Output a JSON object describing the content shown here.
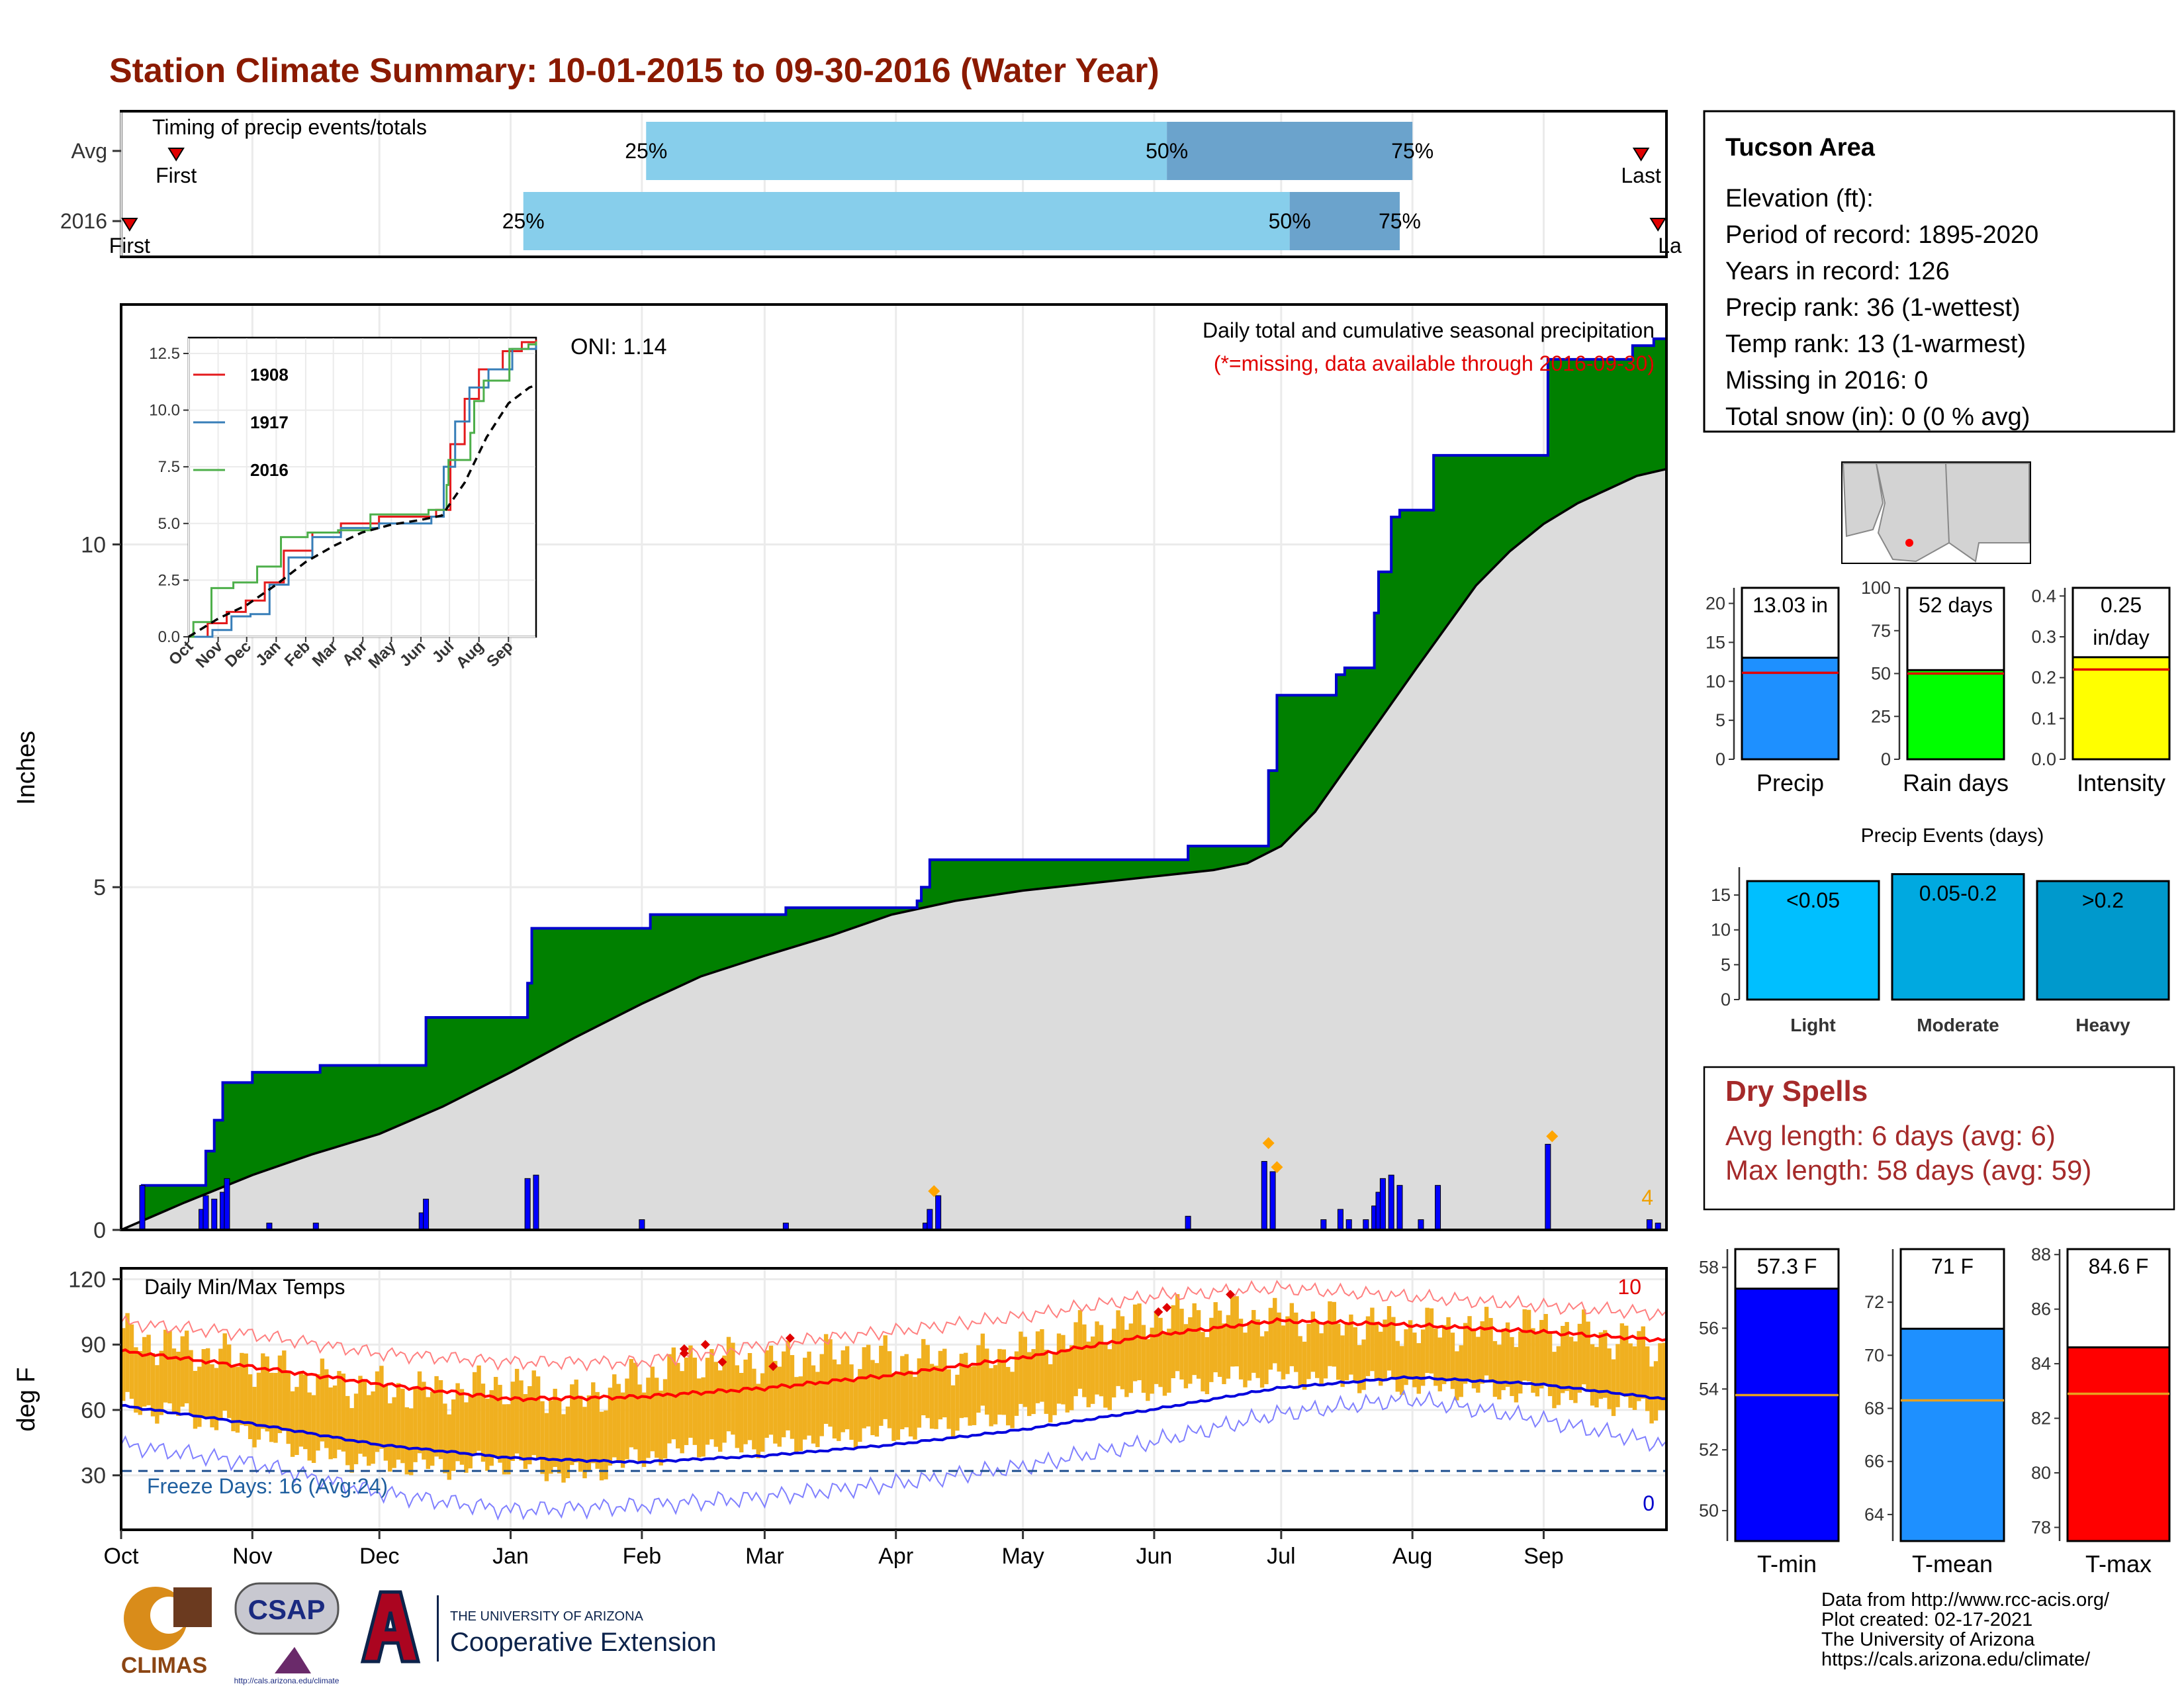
{
  "title": "Station Climate Summary: 10-01-2015 to 09-30-2016 (Water Year)",
  "months": [
    "Oct",
    "Nov",
    "Dec",
    "Jan",
    "Feb",
    "Mar",
    "Apr",
    "May",
    "Jun",
    "Jul",
    "Aug",
    "Sep"
  ],
  "timing": {
    "title": "Timing of precip events/totals",
    "rows": [
      {
        "label": "Avg",
        "first_day": 13,
        "last_day": 359,
        "p25": 124,
        "p50": 247,
        "p75": 305,
        "first_label": "First",
        "last_label": "Last",
        "p25_label": "25%",
        "p50_label": "50%",
        "p75_label": "75%"
      },
      {
        "label": "2016",
        "first_day": 2,
        "last_day": 363,
        "p25": 95,
        "p50": 276,
        "p75": 302,
        "first_label": "First",
        "last_label": "Last",
        "p25_label": "25%",
        "p50_label": "50%",
        "p75_label": "75%"
      }
    ]
  },
  "precip": {
    "ylabel": "Inches",
    "yticks": [
      0,
      5,
      10
    ],
    "ylim": [
      0,
      13.5
    ],
    "oni": "ONI: 1.14",
    "note_title": "Daily total and cumulative seasonal precipitation",
    "note_missing": "(*=missing, data available through 2016-09-30)",
    "count_label": "4",
    "cumulative_2016": [
      [
        0,
        0
      ],
      [
        5,
        0.65
      ],
      [
        17,
        0.65
      ],
      [
        20,
        1.15
      ],
      [
        22,
        1.6
      ],
      [
        24,
        2.15
      ],
      [
        31,
        2.3
      ],
      [
        45,
        2.3
      ],
      [
        47,
        2.4
      ],
      [
        70,
        2.4
      ],
      [
        72,
        3.1
      ],
      [
        74,
        3.1
      ],
      [
        94,
        3.1
      ],
      [
        96,
        3.6
      ],
      [
        97,
        4.4
      ],
      [
        123,
        4.4
      ],
      [
        125,
        4.6
      ],
      [
        155,
        4.6
      ],
      [
        157,
        4.7
      ],
      [
        186,
        4.7
      ],
      [
        188,
        4.8
      ],
      [
        189,
        5.0
      ],
      [
        191,
        5.4
      ],
      [
        250,
        5.4
      ],
      [
        252,
        5.6
      ],
      [
        269,
        5.6
      ],
      [
        271,
        6.7
      ],
      [
        273,
        7.8
      ],
      [
        285,
        7.8
      ],
      [
        287,
        8.1
      ],
      [
        289,
        8.2
      ],
      [
        294,
        8.2
      ],
      [
        296,
        9.0
      ],
      [
        297,
        9.6
      ],
      [
        300,
        10.4
      ],
      [
        302,
        10.5
      ],
      [
        307,
        10.5
      ],
      [
        310,
        11.3
      ],
      [
        323,
        11.3
      ],
      [
        335,
        11.3
      ],
      [
        337,
        12.7
      ],
      [
        355,
        12.7
      ],
      [
        357,
        12.9
      ],
      [
        362,
        13.0
      ],
      [
        365,
        13.03
      ]
    ],
    "cumulative_avg": [
      [
        0,
        0
      ],
      [
        15,
        0.4
      ],
      [
        31,
        0.8
      ],
      [
        45,
        1.1
      ],
      [
        61,
        1.4
      ],
      [
        76,
        1.8
      ],
      [
        92,
        2.3
      ],
      [
        107,
        2.8
      ],
      [
        123,
        3.3
      ],
      [
        137,
        3.7
      ],
      [
        152,
        4.0
      ],
      [
        168,
        4.3
      ],
      [
        182,
        4.6
      ],
      [
        197,
        4.8
      ],
      [
        213,
        4.95
      ],
      [
        228,
        5.05
      ],
      [
        243,
        5.15
      ],
      [
        258,
        5.25
      ],
      [
        266,
        5.35
      ],
      [
        274,
        5.6
      ],
      [
        282,
        6.1
      ],
      [
        290,
        6.8
      ],
      [
        298,
        7.5
      ],
      [
        306,
        8.2
      ],
      [
        313,
        8.8
      ],
      [
        320,
        9.4
      ],
      [
        328,
        9.9
      ],
      [
        336,
        10.3
      ],
      [
        344,
        10.6
      ],
      [
        351,
        10.8
      ],
      [
        358,
        11.0
      ],
      [
        365,
        11.1
      ]
    ],
    "daily_bars": [
      [
        5,
        0.65
      ],
      [
        19,
        0.3
      ],
      [
        20,
        0.5
      ],
      [
        22,
        0.45
      ],
      [
        24,
        0.55
      ],
      [
        25,
        0.75
      ],
      [
        35,
        0.1
      ],
      [
        46,
        0.1
      ],
      [
        71,
        0.25
      ],
      [
        72,
        0.45
      ],
      [
        96,
        0.75
      ],
      [
        98,
        0.8
      ],
      [
        123,
        0.15
      ],
      [
        157,
        0.1
      ],
      [
        190,
        0.1
      ],
      [
        191,
        0.3
      ],
      [
        193,
        0.5
      ],
      [
        252,
        0.2
      ],
      [
        270,
        1.0
      ],
      [
        272,
        0.85
      ],
      [
        284,
        0.15
      ],
      [
        288,
        0.3
      ],
      [
        290,
        0.15
      ],
      [
        294,
        0.15
      ],
      [
        296,
        0.35
      ],
      [
        297,
        0.55
      ],
      [
        298,
        0.75
      ],
      [
        300,
        0.8
      ],
      [
        302,
        0.65
      ],
      [
        307,
        0.15
      ],
      [
        311,
        0.65
      ],
      [
        337,
        1.25
      ],
      [
        361,
        0.15
      ],
      [
        363,
        0.1
      ]
    ],
    "markers": [
      [
        192,
        0.45
      ],
      [
        271,
        1.15
      ],
      [
        273,
        0.8
      ],
      [
        338,
        1.25
      ]
    ]
  },
  "inset": {
    "yticks": [
      0.0,
      2.5,
      5.0,
      7.5,
      10.0,
      12.5
    ],
    "ylim": [
      0,
      13.2
    ],
    "months": [
      "Oct",
      "Nov",
      "Dec",
      "Jan",
      "Feb",
      "Mar",
      "Apr",
      "May",
      "Jun",
      "Jul",
      "Aug",
      "Sep"
    ],
    "series": [
      {
        "name": "1908",
        "color": "#e41a1c",
        "points": [
          [
            0,
            0
          ],
          [
            20,
            0.6
          ],
          [
            40,
            1.1
          ],
          [
            60,
            1.6
          ],
          [
            80,
            2.4
          ],
          [
            100,
            3.8
          ],
          [
            130,
            4.6
          ],
          [
            160,
            5.0
          ],
          [
            200,
            5.3
          ],
          [
            260,
            5.6
          ],
          [
            275,
            8.5
          ],
          [
            290,
            10.5
          ],
          [
            305,
            11.8
          ],
          [
            330,
            12.6
          ],
          [
            350,
            13.0
          ],
          [
            365,
            13.1
          ]
        ]
      },
      {
        "name": "1917",
        "color": "#377eb8",
        "points": [
          [
            0,
            0
          ],
          [
            25,
            0.3
          ],
          [
            45,
            0.9
          ],
          [
            65,
            1.0
          ],
          [
            85,
            2.3
          ],
          [
            105,
            3.5
          ],
          [
            130,
            4.4
          ],
          [
            160,
            4.8
          ],
          [
            200,
            5.0
          ],
          [
            255,
            5.3
          ],
          [
            268,
            7.5
          ],
          [
            280,
            9.5
          ],
          [
            295,
            11.0
          ],
          [
            315,
            11.8
          ],
          [
            340,
            12.7
          ],
          [
            365,
            12.9
          ]
        ]
      },
      {
        "name": "2016",
        "color": "#4daf4a",
        "points": [
          [
            0,
            0
          ],
          [
            5,
            0.65
          ],
          [
            24,
            2.15
          ],
          [
            47,
            2.4
          ],
          [
            72,
            3.1
          ],
          [
            97,
            4.4
          ],
          [
            125,
            4.6
          ],
          [
            157,
            4.7
          ],
          [
            191,
            5.4
          ],
          [
            250,
            5.4
          ],
          [
            252,
            5.6
          ],
          [
            271,
            6.7
          ],
          [
            273,
            7.8
          ],
          [
            296,
            9.0
          ],
          [
            300,
            10.4
          ],
          [
            310,
            11.3
          ],
          [
            337,
            12.7
          ],
          [
            357,
            12.9
          ],
          [
            365,
            13.03
          ]
        ]
      },
      {
        "name": "",
        "color": "#000000",
        "dashed": true,
        "points": [
          [
            0,
            0
          ],
          [
            31,
            0.8
          ],
          [
            61,
            1.4
          ],
          [
            92,
            2.3
          ],
          [
            123,
            3.3
          ],
          [
            152,
            4.0
          ],
          [
            182,
            4.6
          ],
          [
            213,
            4.95
          ],
          [
            243,
            5.15
          ],
          [
            266,
            5.35
          ],
          [
            290,
            6.8
          ],
          [
            313,
            8.8
          ],
          [
            336,
            10.3
          ],
          [
            358,
            11.0
          ],
          [
            365,
            11.1
          ]
        ]
      }
    ]
  },
  "temps": {
    "label": "Daily Min/Max Temps",
    "ylabel": "deg F",
    "yticks": [
      30,
      60,
      90,
      120
    ],
    "ylim": [
      5,
      125
    ],
    "freeze_line": 32,
    "freeze_label": "Freeze Days: 16 (Avg:24)",
    "count_max_label": "10",
    "count_min_label": "0",
    "avg_max": [
      [
        0,
        87
      ],
      [
        30,
        80
      ],
      [
        61,
        72
      ],
      [
        92,
        65
      ],
      [
        122,
        66
      ],
      [
        152,
        70
      ],
      [
        182,
        76
      ],
      [
        213,
        84
      ],
      [
        243,
        94
      ],
      [
        273,
        101
      ],
      [
        304,
        99
      ],
      [
        334,
        96
      ],
      [
        365,
        92
      ]
    ],
    "avg_min": [
      [
        0,
        62
      ],
      [
        30,
        54
      ],
      [
        61,
        44
      ],
      [
        92,
        38
      ],
      [
        122,
        36
      ],
      [
        152,
        39
      ],
      [
        182,
        44
      ],
      [
        213,
        51
      ],
      [
        243,
        60
      ],
      [
        273,
        70
      ],
      [
        304,
        75
      ],
      [
        334,
        72
      ],
      [
        365,
        65
      ]
    ],
    "record_max": [
      [
        0,
        100
      ],
      [
        30,
        95
      ],
      [
        61,
        86
      ],
      [
        92,
        82
      ],
      [
        122,
        82
      ],
      [
        152,
        90
      ],
      [
        182,
        96
      ],
      [
        213,
        103
      ],
      [
        243,
        112
      ],
      [
        273,
        116
      ],
      [
        304,
        112
      ],
      [
        334,
        108
      ],
      [
        365,
        104
      ]
    ],
    "record_min": [
      [
        0,
        44
      ],
      [
        30,
        36
      ],
      [
        61,
        22
      ],
      [
        92,
        14
      ],
      [
        122,
        16
      ],
      [
        152,
        20
      ],
      [
        182,
        26
      ],
      [
        213,
        34
      ],
      [
        243,
        45
      ],
      [
        273,
        58
      ],
      [
        304,
        65
      ],
      [
        334,
        56
      ],
      [
        365,
        44
      ]
    ],
    "daily_max": [
      [
        0,
        94
      ],
      [
        15,
        88
      ],
      [
        30,
        82
      ],
      [
        45,
        74
      ],
      [
        61,
        70
      ],
      [
        76,
        68
      ],
      [
        92,
        72
      ],
      [
        107,
        64
      ],
      [
        122,
        75
      ],
      [
        137,
        84
      ],
      [
        152,
        82
      ],
      [
        168,
        85
      ],
      [
        182,
        84
      ],
      [
        197,
        82
      ],
      [
        213,
        88
      ],
      [
        228,
        96
      ],
      [
        243,
        102
      ],
      [
        258,
        104
      ],
      [
        273,
        102
      ],
      [
        289,
        100
      ],
      [
        304,
        98
      ],
      [
        320,
        97
      ],
      [
        334,
        98
      ],
      [
        350,
        94
      ],
      [
        365,
        88
      ]
    ],
    "daily_min": [
      [
        0,
        64
      ],
      [
        15,
        60
      ],
      [
        30,
        52
      ],
      [
        45,
        42
      ],
      [
        61,
        38
      ],
      [
        76,
        36
      ],
      [
        92,
        38
      ],
      [
        107,
        32
      ],
      [
        122,
        40
      ],
      [
        137,
        46
      ],
      [
        152,
        46
      ],
      [
        168,
        50
      ],
      [
        182,
        52
      ],
      [
        197,
        56
      ],
      [
        213,
        60
      ],
      [
        228,
        66
      ],
      [
        243,
        72
      ],
      [
        258,
        76
      ],
      [
        273,
        78
      ],
      [
        289,
        76
      ],
      [
        304,
        74
      ],
      [
        320,
        72
      ],
      [
        334,
        70
      ],
      [
        350,
        66
      ],
      [
        365,
        60
      ]
    ],
    "record_markers": [
      [
        133,
        86
      ],
      [
        133,
        88
      ],
      [
        138,
        90
      ],
      [
        142,
        82
      ],
      [
        158,
        93
      ],
      [
        154,
        80
      ],
      [
        245,
        105
      ],
      [
        247,
        107
      ],
      [
        262,
        113
      ]
    ]
  },
  "station": {
    "name": "Tucson Area",
    "lines": [
      "Elevation (ft):",
      "Period of record: 1895-2020",
      "Years in record: 126",
      "Precip rank: 36 (1-wettest)",
      "Temp rank: 13 (1-warmest)",
      "Missing in 2016: 0",
      "Total snow (in): 0 (0 % avg)"
    ]
  },
  "summary_bars": [
    {
      "name": "Precip",
      "value": 13.03,
      "avg": 11.1,
      "ylim": [
        0,
        22
      ],
      "yticks": [
        0,
        5,
        10,
        15,
        20
      ],
      "color": "#1e90ff",
      "value_label": "13.03 in"
    },
    {
      "name": "Rain days",
      "value": 52,
      "avg": 50,
      "ylim": [
        0,
        100
      ],
      "yticks": [
        0,
        25,
        50,
        75,
        100
      ],
      "color": "#00ff00",
      "value_label": "52 days"
    },
    {
      "name": "Intensity",
      "value": 0.25,
      "avg": 0.22,
      "ylim": [
        0,
        0.42
      ],
      "yticks": [
        0.0,
        0.1,
        0.2,
        0.3,
        0.4
      ],
      "color": "#ffff00",
      "value_label": "0.25",
      "value_label2": "in/day"
    }
  ],
  "events": {
    "title": "Precip Events (days)",
    "yticks": [
      0,
      5,
      10,
      15
    ],
    "ylim": [
      0,
      19
    ],
    "bars": [
      {
        "name": "Light",
        "value": 17,
        "range": "<0.05",
        "color": "#00bfff"
      },
      {
        "name": "Moderate",
        "value": 18,
        "range": "0.05-0.2",
        "color": "#00a9e0"
      },
      {
        "name": "Heavy",
        "value": 17,
        "range": ">0.2",
        "color": "#0099cc"
      }
    ]
  },
  "dry_spells": {
    "title": "Dry Spells",
    "avg_line": "Avg length: 6 days (avg: 6)",
    "max_line": "Max length: 58 days (avg: 59)"
  },
  "temp_bars": [
    {
      "name": "T-min",
      "value": 57.3,
      "avg": 53.8,
      "ylim": [
        49,
        58.6
      ],
      "yticks": [
        50,
        52,
        54,
        56,
        58
      ],
      "color": "#0000ff",
      "value_label": "57.3 F"
    },
    {
      "name": "T-mean",
      "value": 71,
      "avg": 68.3,
      "ylim": [
        63,
        74
      ],
      "yticks": [
        64,
        66,
        68,
        70,
        72
      ],
      "color": "#1e90ff",
      "value_label": "71 F"
    },
    {
      "name": "T-max",
      "value": 84.6,
      "avg": 82.9,
      "ylim": [
        77.5,
        88.2
      ],
      "yticks": [
        78,
        80,
        82,
        84,
        86,
        88
      ],
      "color": "#ff0000",
      "value_label": "84.6 F"
    }
  ],
  "footer": {
    "lines": [
      "Data from http://www.rcc-acis.org/",
      "Plot created: 02-17-2021",
      "The University of Arizona",
      "https://cals.arizona.edu/climate/"
    ]
  },
  "logos": {
    "climas": "CLIMAS",
    "csap": "CSAP",
    "csap_url": "http://cals.arizona.edu/climate",
    "ua_small": "THE UNIVERSITY OF ARIZONA",
    "ua_big": "Cooperative Extension"
  },
  "colors": {
    "title": "#8b1a00",
    "cum_fill": "#008000",
    "avg_fill": "#dcdcdc",
    "cum_line": "#0000cd",
    "bar_blue": "#0000ff",
    "orange": "#f0b020",
    "dry": "#a52a2a"
  }
}
